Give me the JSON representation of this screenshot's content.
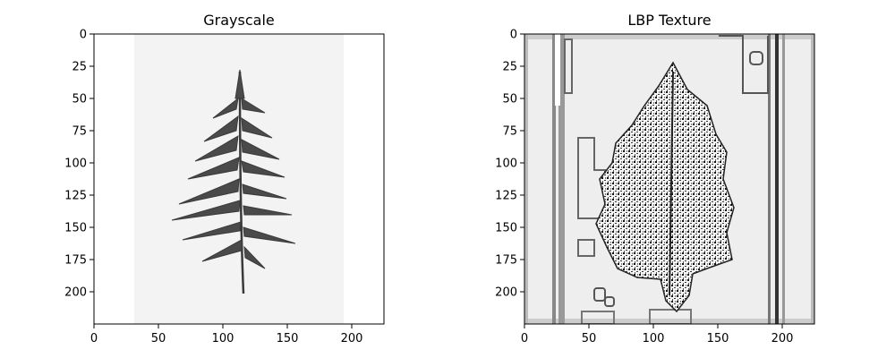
{
  "chart_data": [
    {
      "type": "image",
      "title": "Grayscale",
      "image_size": [
        225,
        225
      ],
      "xlim": [
        0,
        225
      ],
      "ylim": [
        225,
        0
      ],
      "xticks": [
        0,
        50,
        100,
        150,
        200
      ],
      "yticks": [
        0,
        25,
        50,
        75,
        100,
        125,
        150,
        175,
        200
      ],
      "image_content": "grayscale-fern-leaf",
      "colors": {
        "background": "#f4f4f4",
        "leaf": "#4a4a4a"
      }
    },
    {
      "type": "image",
      "title": "LBP Texture",
      "image_size": [
        225,
        225
      ],
      "xlim": [
        0,
        225
      ],
      "ylim": [
        225,
        0
      ],
      "xticks": [
        0,
        50,
        100,
        150,
        200
      ],
      "yticks": [
        0,
        25,
        50,
        75,
        100,
        125,
        150,
        175,
        200
      ],
      "image_content": "lbp-texture-map",
      "colors": {
        "background": "#eeeeee",
        "edges": "#222222"
      }
    }
  ]
}
